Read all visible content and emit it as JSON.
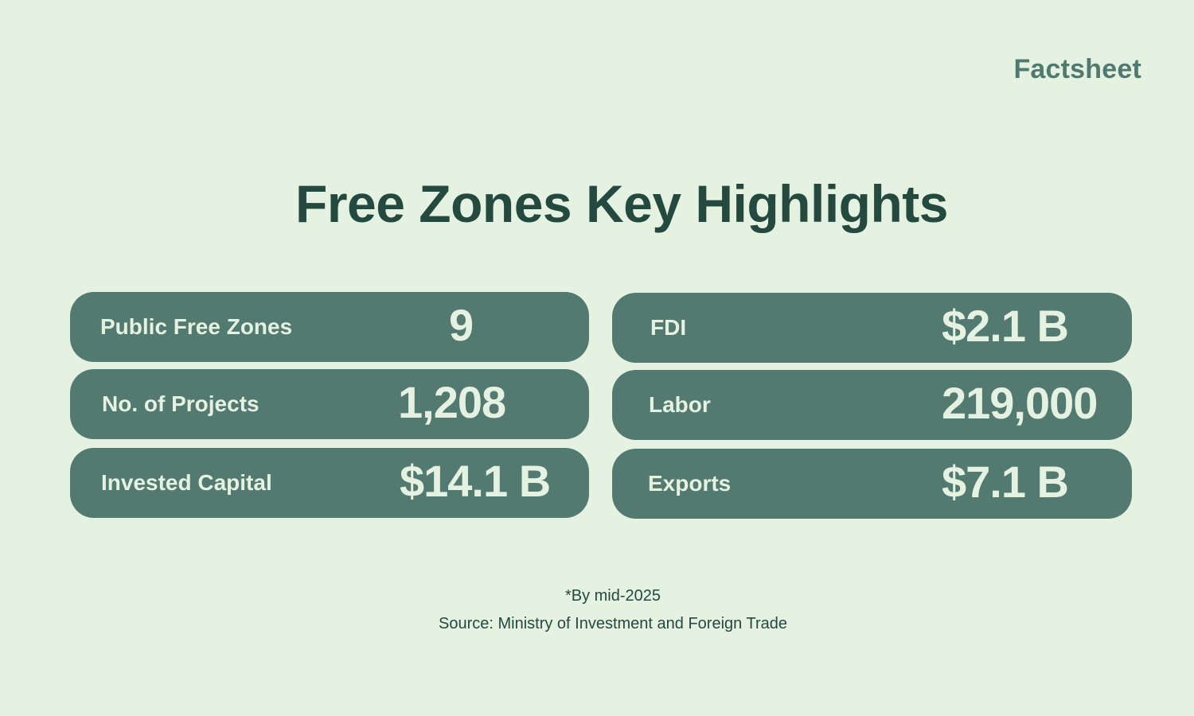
{
  "brand": "Factsheet",
  "title": "Free Zones Key Highlights",
  "stats": [
    {
      "label": "Public Free Zones",
      "value": "9"
    },
    {
      "label": "No. of Projects",
      "value": "1,208"
    },
    {
      "label": "Invested Capital",
      "value": "$14.1 B"
    },
    {
      "label": "FDI",
      "value": "$2.1 B"
    },
    {
      "label": "Labor",
      "value": "219,000"
    },
    {
      "label": "Exports",
      "value": "$7.1 B"
    }
  ],
  "footnote": "*By mid-2025",
  "source": "Source: Ministry of Investment and Foreign Trade",
  "colors": {
    "background": "#e5f1e1",
    "card": "#527a70",
    "title": "#244a40",
    "brand": "#4f7a70"
  }
}
